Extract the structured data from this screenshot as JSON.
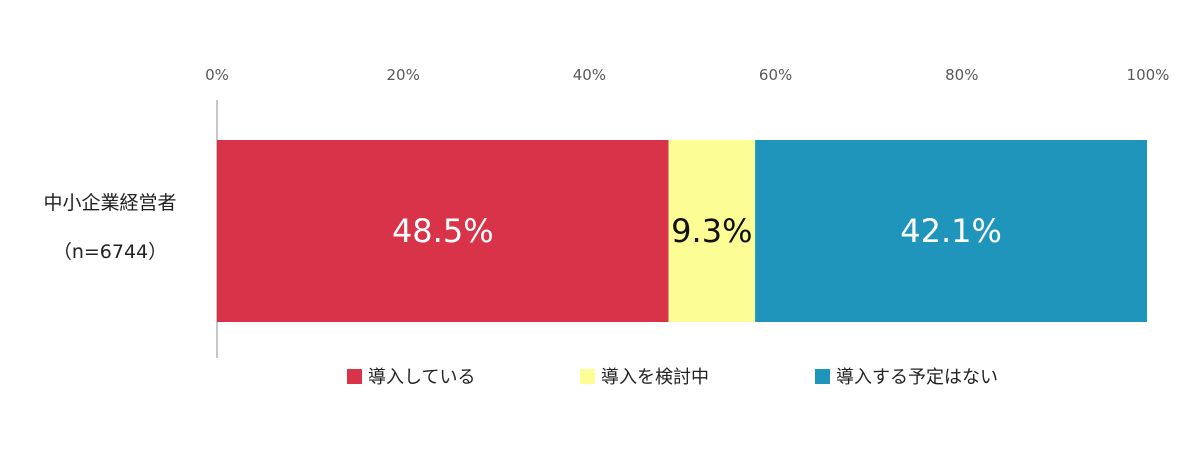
{
  "chart_data": {
    "type": "bar",
    "orientation": "horizontal",
    "stacked": true,
    "categories": [
      "中小企業経営者"
    ],
    "category_sub": "（n=6744）",
    "series": [
      {
        "name": "導入している",
        "values": [
          48.5
        ],
        "label": "48.5%",
        "color": "#d9334a",
        "label_color": "#ffffff"
      },
      {
        "name": "導入を検討中",
        "values": [
          9.3
        ],
        "label": "9.3%",
        "color": "#fdfd96",
        "label_color": "#111111"
      },
      {
        "name": "導入する予定はない",
        "values": [
          42.1
        ],
        "label": "42.1%",
        "color": "#1f95bb",
        "label_color": "#ffffff"
      }
    ],
    "x_ticks": [
      "0%",
      "20%",
      "40%",
      "60%",
      "80%",
      "100%"
    ],
    "xlim": [
      0,
      100
    ],
    "x_axis_position": "top",
    "grid": false,
    "legend": "bottom"
  }
}
